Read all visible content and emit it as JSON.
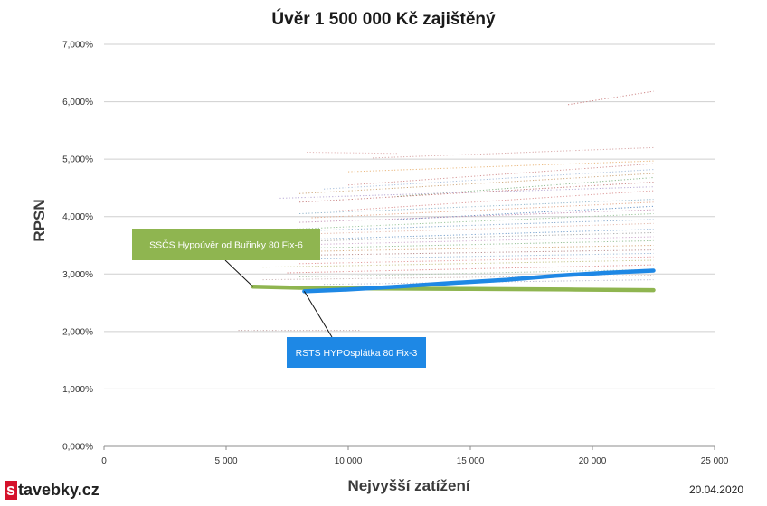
{
  "chart_data": {
    "type": "line",
    "title": "Úvěr 1 500 000 Kč zajištěný",
    "xlabel": "Nejvyšší zatížení",
    "ylabel": "RPSN",
    "xlim": [
      0,
      25000
    ],
    "ylim": [
      0,
      7
    ],
    "x_ticks": [
      "0",
      "5 000",
      "10 000",
      "15 000",
      "20 000",
      "25 000"
    ],
    "y_ticks": [
      "0,000%",
      "1,000%",
      "2,000%",
      "3,000%",
      "4,000%",
      "5,000%",
      "6,000%",
      "7,000%"
    ],
    "grid": true,
    "highlighted_series": [
      {
        "name": "SSČS Hypoúvěr od Buřinky 80 Fix-6",
        "color": "#8fb550",
        "points": [
          [
            6100,
            2.78
          ],
          [
            8000,
            2.76
          ],
          [
            11000,
            2.75
          ],
          [
            15000,
            2.74
          ],
          [
            19000,
            2.73
          ],
          [
            22500,
            2.72
          ]
        ]
      },
      {
        "name": "RSTS HYPOsplátka 80 Fix-3",
        "color": "#1e88e5",
        "points": [
          [
            8200,
            2.7
          ],
          [
            10000,
            2.73
          ],
          [
            12000,
            2.78
          ],
          [
            14500,
            2.85
          ],
          [
            16500,
            2.9
          ],
          [
            18500,
            2.97
          ],
          [
            20500,
            3.02
          ],
          [
            22500,
            3.06
          ]
        ]
      }
    ],
    "background_series": [
      {
        "color": "#c97b7b",
        "points": [
          [
            19000,
            5.95
          ],
          [
            22500,
            6.18
          ]
        ]
      },
      {
        "color": "#e0b0b0",
        "points": [
          [
            8300,
            5.12
          ],
          [
            12000,
            5.1
          ]
        ]
      },
      {
        "color": "#d4a0a0",
        "points": [
          [
            11000,
            5.02
          ],
          [
            22500,
            5.2
          ]
        ]
      },
      {
        "color": "#e8b070",
        "points": [
          [
            10000,
            4.78
          ],
          [
            22500,
            4.97
          ]
        ]
      },
      {
        "color": "#d08a8a",
        "points": [
          [
            10000,
            4.55
          ],
          [
            22500,
            4.92
          ]
        ]
      },
      {
        "color": "#a0b8d8",
        "points": [
          [
            9000,
            4.48
          ],
          [
            22500,
            4.82
          ]
        ]
      },
      {
        "color": "#c9a070",
        "points": [
          [
            8000,
            4.4
          ],
          [
            22500,
            4.75
          ]
        ]
      },
      {
        "color": "#7fb07f",
        "points": [
          [
            12000,
            4.35
          ],
          [
            22500,
            4.68
          ]
        ]
      },
      {
        "color": "#c07070",
        "points": [
          [
            8000,
            4.25
          ],
          [
            22500,
            4.6
          ]
        ]
      },
      {
        "color": "#b0a0d0",
        "points": [
          [
            7200,
            4.32
          ],
          [
            22500,
            4.52
          ]
        ]
      },
      {
        "color": "#d98e8e",
        "points": [
          [
            9500,
            4.1
          ],
          [
            22500,
            4.45
          ]
        ]
      },
      {
        "color": "#8ab0c8",
        "points": [
          [
            8000,
            4.05
          ],
          [
            22500,
            4.3
          ]
        ]
      },
      {
        "color": "#e0a080",
        "points": [
          [
            8500,
            3.98
          ],
          [
            22500,
            4.25
          ]
        ]
      },
      {
        "color": "#5a8ac0",
        "points": [
          [
            12000,
            3.95
          ],
          [
            22500,
            4.18
          ]
        ]
      },
      {
        "color": "#c08ab0",
        "points": [
          [
            8000,
            3.9
          ],
          [
            22500,
            4.12
          ]
        ]
      },
      {
        "color": "#90c090",
        "points": [
          [
            6000,
            3.75
          ],
          [
            22500,
            4.05
          ]
        ]
      },
      {
        "color": "#7aa0c8",
        "points": [
          [
            8000,
            3.75
          ],
          [
            22500,
            3.95
          ]
        ]
      },
      {
        "color": "#e0b0a0",
        "points": [
          [
            7000,
            3.68
          ],
          [
            22500,
            3.88
          ]
        ]
      },
      {
        "color": "#6a98c8",
        "points": [
          [
            8000,
            3.6
          ],
          [
            22500,
            3.78
          ]
        ]
      },
      {
        "color": "#a0a0a0",
        "points": [
          [
            6000,
            3.55
          ],
          [
            22500,
            3.72
          ]
        ]
      },
      {
        "color": "#c8a0c8",
        "points": [
          [
            7000,
            3.5
          ],
          [
            22500,
            3.65
          ]
        ]
      },
      {
        "color": "#88b888",
        "points": [
          [
            8000,
            3.45
          ],
          [
            22500,
            3.58
          ]
        ]
      },
      {
        "color": "#d0a070",
        "points": [
          [
            6500,
            3.38
          ],
          [
            22500,
            3.5
          ]
        ]
      },
      {
        "color": "#b08080",
        "points": [
          [
            7000,
            3.32
          ],
          [
            22500,
            3.42
          ]
        ]
      },
      {
        "color": "#90b0d0",
        "points": [
          [
            7000,
            3.25
          ],
          [
            22500,
            3.36
          ]
        ]
      },
      {
        "color": "#e09090",
        "points": [
          [
            8000,
            3.18
          ],
          [
            22500,
            3.3
          ]
        ]
      },
      {
        "color": "#c0c080",
        "points": [
          [
            6500,
            3.12
          ],
          [
            22500,
            3.24
          ]
        ]
      },
      {
        "color": "#d88080",
        "points": [
          [
            7500,
            3.02
          ],
          [
            22500,
            3.16
          ]
        ]
      },
      {
        "color": "#a0c0a0",
        "points": [
          [
            8000,
            2.95
          ],
          [
            22500,
            3.08
          ]
        ]
      },
      {
        "color": "#c8b0b0",
        "points": [
          [
            6500,
            2.9
          ],
          [
            22500,
            2.98
          ]
        ]
      },
      {
        "color": "#b0b0c8",
        "points": [
          [
            9000,
            2.82
          ],
          [
            22500,
            2.9
          ]
        ]
      },
      {
        "color": "#c0a0a0",
        "points": [
          [
            5500,
            2.02
          ],
          [
            10500,
            2.02
          ]
        ]
      }
    ],
    "annotations": [
      {
        "text": "SSČS Hypoúvěr od Buřinky 80 Fix-6",
        "color": "#8fb550",
        "target": [
          6100,
          2.78
        ]
      },
      {
        "text": "RSTS HYPOsplátka 80 Fix-3",
        "color": "#1e88e5",
        "target": [
          8200,
          2.7
        ]
      }
    ]
  },
  "footer": {
    "logo_mark": "s",
    "logo_text": "tavebky.cz",
    "date": "20.04.2020"
  }
}
